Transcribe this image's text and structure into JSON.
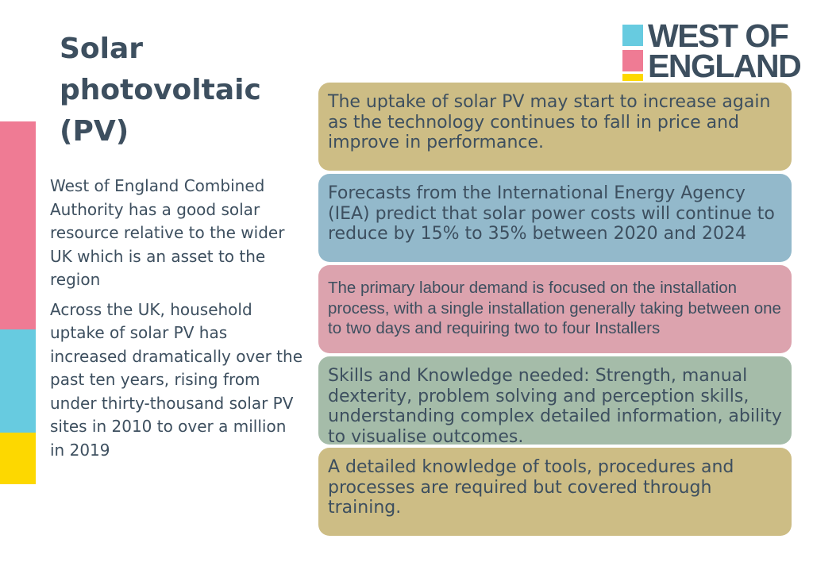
{
  "title": "Solar photovoltaic (PV)",
  "logo": {
    "line1": "WEST OF",
    "line2": "ENGLAND"
  },
  "paragraphs": [
    "West of England Combined Authority has a good solar resource relative to the wider UK which is an asset to the region",
    "Across the UK, household uptake of solar PV has increased dramatically over the past ten years, rising from under thirty-thousand solar PV sites in 2010 to over a million in 2019"
  ],
  "boxes": [
    "The uptake of solar PV may start to increase again as the technology continues to fall in price and improve in performance.",
    "Forecasts from the International Energy Agency (IEA) predict that solar power costs will continue to reduce by 15% to 35% between 2020 and 2024",
    "The primary labour demand is focused on the installation process, with a single installation generally taking between one to two days and requiring two to four Installers",
    "Skills and Knowledge needed: Strength, manual dexterity, problem solving and perception skills, understanding complex detailed information, ability to visualise outcomes.",
    "A detailed knowledge of tools, procedures and processes are required but covered through training."
  ]
}
